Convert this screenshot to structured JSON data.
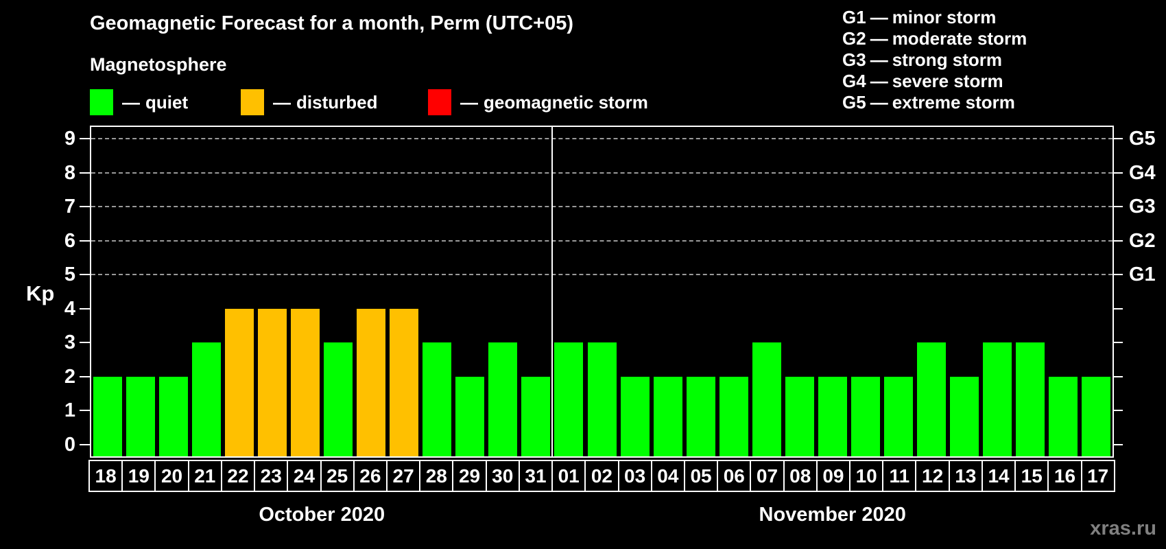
{
  "header": {
    "title": "Geomagnetic Forecast for a month, Perm (UTC+05)",
    "subtitle": "Magnetosphere"
  },
  "legend": {
    "separator": "—",
    "items": [
      {
        "name": "quiet",
        "label": "quiet",
        "color": "#00FF00"
      },
      {
        "name": "disturbed",
        "label": "disturbed",
        "color": "#FFC000"
      },
      {
        "name": "storm",
        "label": "geomagnetic storm",
        "color": "#FF0000"
      }
    ]
  },
  "g_legend": {
    "separator": "—",
    "items": [
      {
        "code": "G1",
        "label": "minor storm"
      },
      {
        "code": "G2",
        "label": "moderate storm"
      },
      {
        "code": "G3",
        "label": "strong storm"
      },
      {
        "code": "G4",
        "label": "severe storm"
      },
      {
        "code": "G5",
        "label": "extreme storm"
      }
    ]
  },
  "axis": {
    "y_label": "Kp",
    "y_ticks": [
      0,
      1,
      2,
      3,
      4,
      5,
      6,
      7,
      8,
      9
    ],
    "right_scale": [
      {
        "code": "G1",
        "kp": 5
      },
      {
        "code": "G2",
        "kp": 6
      },
      {
        "code": "G3",
        "kp": 7
      },
      {
        "code": "G4",
        "kp": 8
      },
      {
        "code": "G5",
        "kp": 9
      }
    ]
  },
  "watermark": "xras.ru",
  "chart_data": {
    "type": "bar",
    "title": "Geomagnetic Forecast for a month, Perm (UTC+05)",
    "ylabel": "Kp",
    "ylim": [
      0,
      9
    ],
    "grid_kp": [
      5,
      6,
      7,
      8,
      9
    ],
    "legend_position": "top-left",
    "status_colors": {
      "quiet": "#00FF00",
      "disturbed": "#FFC000",
      "storm": "#FF0000"
    },
    "months": [
      {
        "label": "October 2020",
        "days": [
          "18",
          "19",
          "20",
          "21",
          "22",
          "23",
          "24",
          "25",
          "26",
          "27",
          "28",
          "29",
          "30",
          "31"
        ],
        "kp": [
          2,
          2,
          2,
          3,
          4,
          4,
          4,
          3,
          4,
          4,
          3,
          2,
          3,
          2
        ],
        "status": [
          "quiet",
          "quiet",
          "quiet",
          "quiet",
          "disturbed",
          "disturbed",
          "disturbed",
          "quiet",
          "disturbed",
          "disturbed",
          "quiet",
          "quiet",
          "quiet",
          "quiet"
        ]
      },
      {
        "label": "November 2020",
        "days": [
          "01",
          "02",
          "03",
          "04",
          "05",
          "06",
          "07",
          "08",
          "09",
          "10",
          "11",
          "12",
          "13",
          "14",
          "15",
          "16",
          "17"
        ],
        "kp": [
          3,
          3,
          2,
          2,
          2,
          2,
          3,
          2,
          2,
          2,
          2,
          3,
          2,
          3,
          3,
          2,
          2
        ],
        "status": [
          "quiet",
          "quiet",
          "quiet",
          "quiet",
          "quiet",
          "quiet",
          "quiet",
          "quiet",
          "quiet",
          "quiet",
          "quiet",
          "quiet",
          "quiet",
          "quiet",
          "quiet",
          "quiet",
          "quiet"
        ]
      }
    ]
  }
}
